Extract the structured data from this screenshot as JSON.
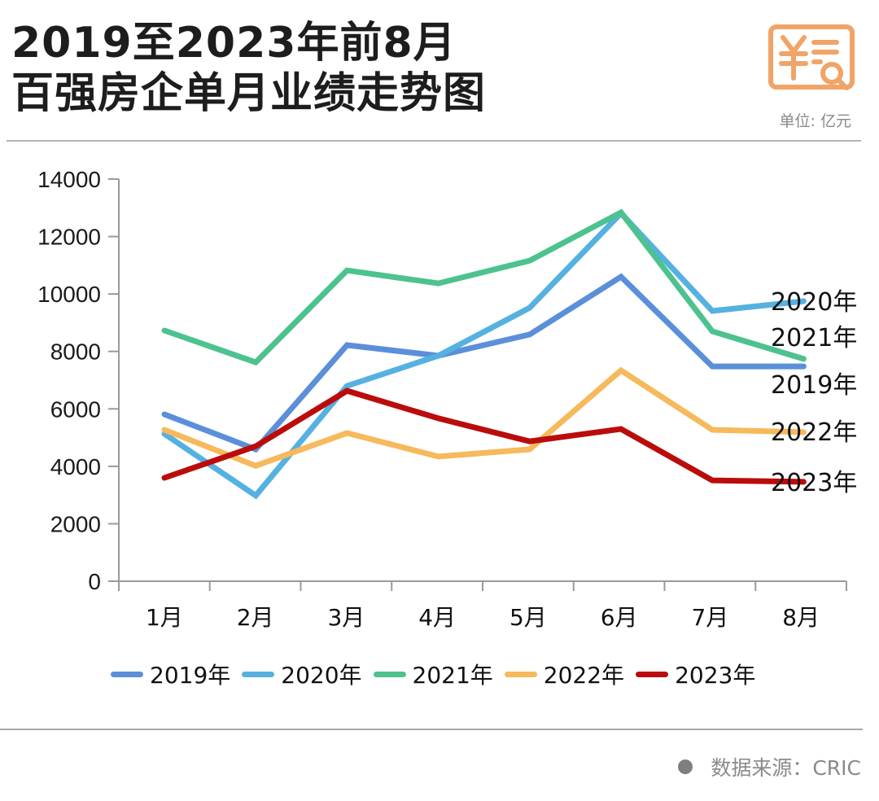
{
  "header": {
    "title_line1": "2019至2023年前8月",
    "title_line2": "百强房企单月业绩走势图",
    "unit": "单位: 亿元",
    "logo_icon": "yuan-receipt-search-icon",
    "accent_color": "#f0a468"
  },
  "footer": {
    "source": "数据来源：CRIC"
  },
  "chart_data": {
    "type": "line",
    "title": "2019至2023年前8月百强房企单月业绩走势图",
    "xlabel": "",
    "ylabel": "单位: 亿元",
    "categories": [
      "1月",
      "2月",
      "3月",
      "4月",
      "5月",
      "6月",
      "7月",
      "8月"
    ],
    "ylim": [
      0,
      14000
    ],
    "yticks": [
      0,
      2000,
      4000,
      6000,
      8000,
      10000,
      12000,
      14000
    ],
    "grid": false,
    "legend_position": "bottom",
    "series": [
      {
        "name": "2019年",
        "color": "#5b8fd9",
        "values": [
          5810,
          4590,
          8220,
          7850,
          8590,
          10600,
          7480,
          7480
        ]
      },
      {
        "name": "2020年",
        "color": "#55b1e0",
        "values": [
          5130,
          2980,
          6800,
          7850,
          9520,
          12810,
          9410,
          9750
        ]
      },
      {
        "name": "2021年",
        "color": "#4dc28f",
        "values": [
          8730,
          7620,
          10820,
          10370,
          11160,
          12840,
          8700,
          7740
        ]
      },
      {
        "name": "2022年",
        "color": "#f6b95c",
        "values": [
          5270,
          4020,
          5160,
          4340,
          4590,
          7340,
          5270,
          5190
        ]
      },
      {
        "name": "2023年",
        "color": "#bb0c0c",
        "values": [
          3600,
          4700,
          6630,
          5670,
          4870,
          5300,
          3510,
          3460
        ]
      }
    ],
    "end_labels": [
      "2020年",
      "2021年",
      "2019年",
      "2022年",
      "2023年"
    ]
  }
}
